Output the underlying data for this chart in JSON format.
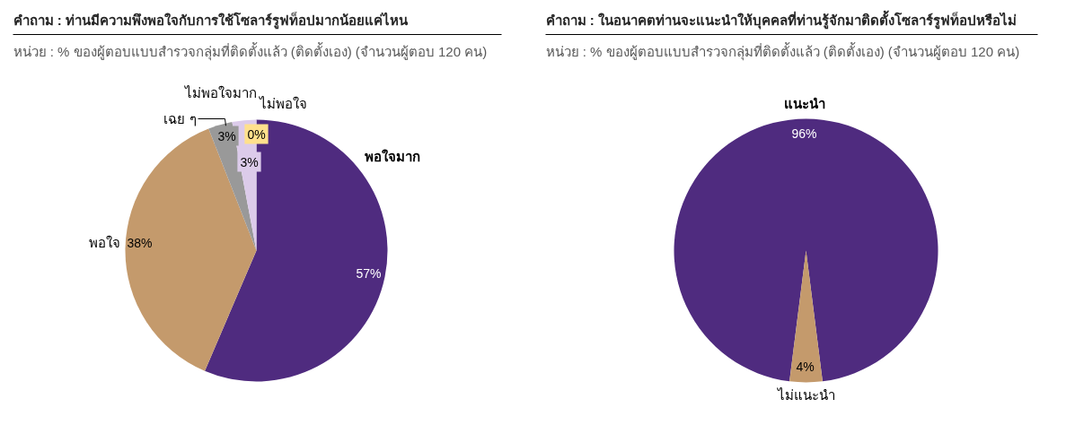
{
  "chart_data": [
    {
      "type": "pie",
      "title": "คำถาม : ท่านมีความพึงพอใจกับการใช้โซลาร์รูฟท็อปมากน้อยแค่ไหน",
      "subtitle": "หน่วย : % ของผู้ตอบแบบสำรวจกลุ่มที่ติดตั้งแล้ว (ติดตั้งเอง) (จำนวนผู้ตอบ 120 คน)",
      "categories": [
        "พอใจมาก",
        "พอใจ",
        "เฉย ๆ",
        "ไม่พอใจมาก",
        "ไม่พอใจ"
      ],
      "values": [
        57,
        38,
        3,
        3,
        0
      ],
      "value_labels": [
        "57%",
        "38%",
        "3%",
        "3%",
        "0%"
      ],
      "colors": [
        "#4f2b7f",
        "#c49a6c",
        "#999999",
        "#dccbea",
        "#ffe08c"
      ]
    },
    {
      "type": "pie",
      "title": "คำถาม : ในอนาคตท่านจะแนะนำให้บุคคลที่ท่านรู้จักมาติดตั้งโซลาร์รูฟท็อปหรือไม่",
      "subtitle": "หน่วย : % ของผู้ตอบแบบสำรวจกลุ่มที่ติดตั้งแล้ว (ติดตั้งเอง) (จำนวนผู้ตอบ 120 คน)",
      "categories": [
        "แนะนำ",
        "ไม่แนะนำ"
      ],
      "values": [
        96,
        4
      ],
      "value_labels": [
        "96%",
        "4%"
      ],
      "colors": [
        "#4f2b7f",
        "#c49a6c"
      ]
    }
  ]
}
